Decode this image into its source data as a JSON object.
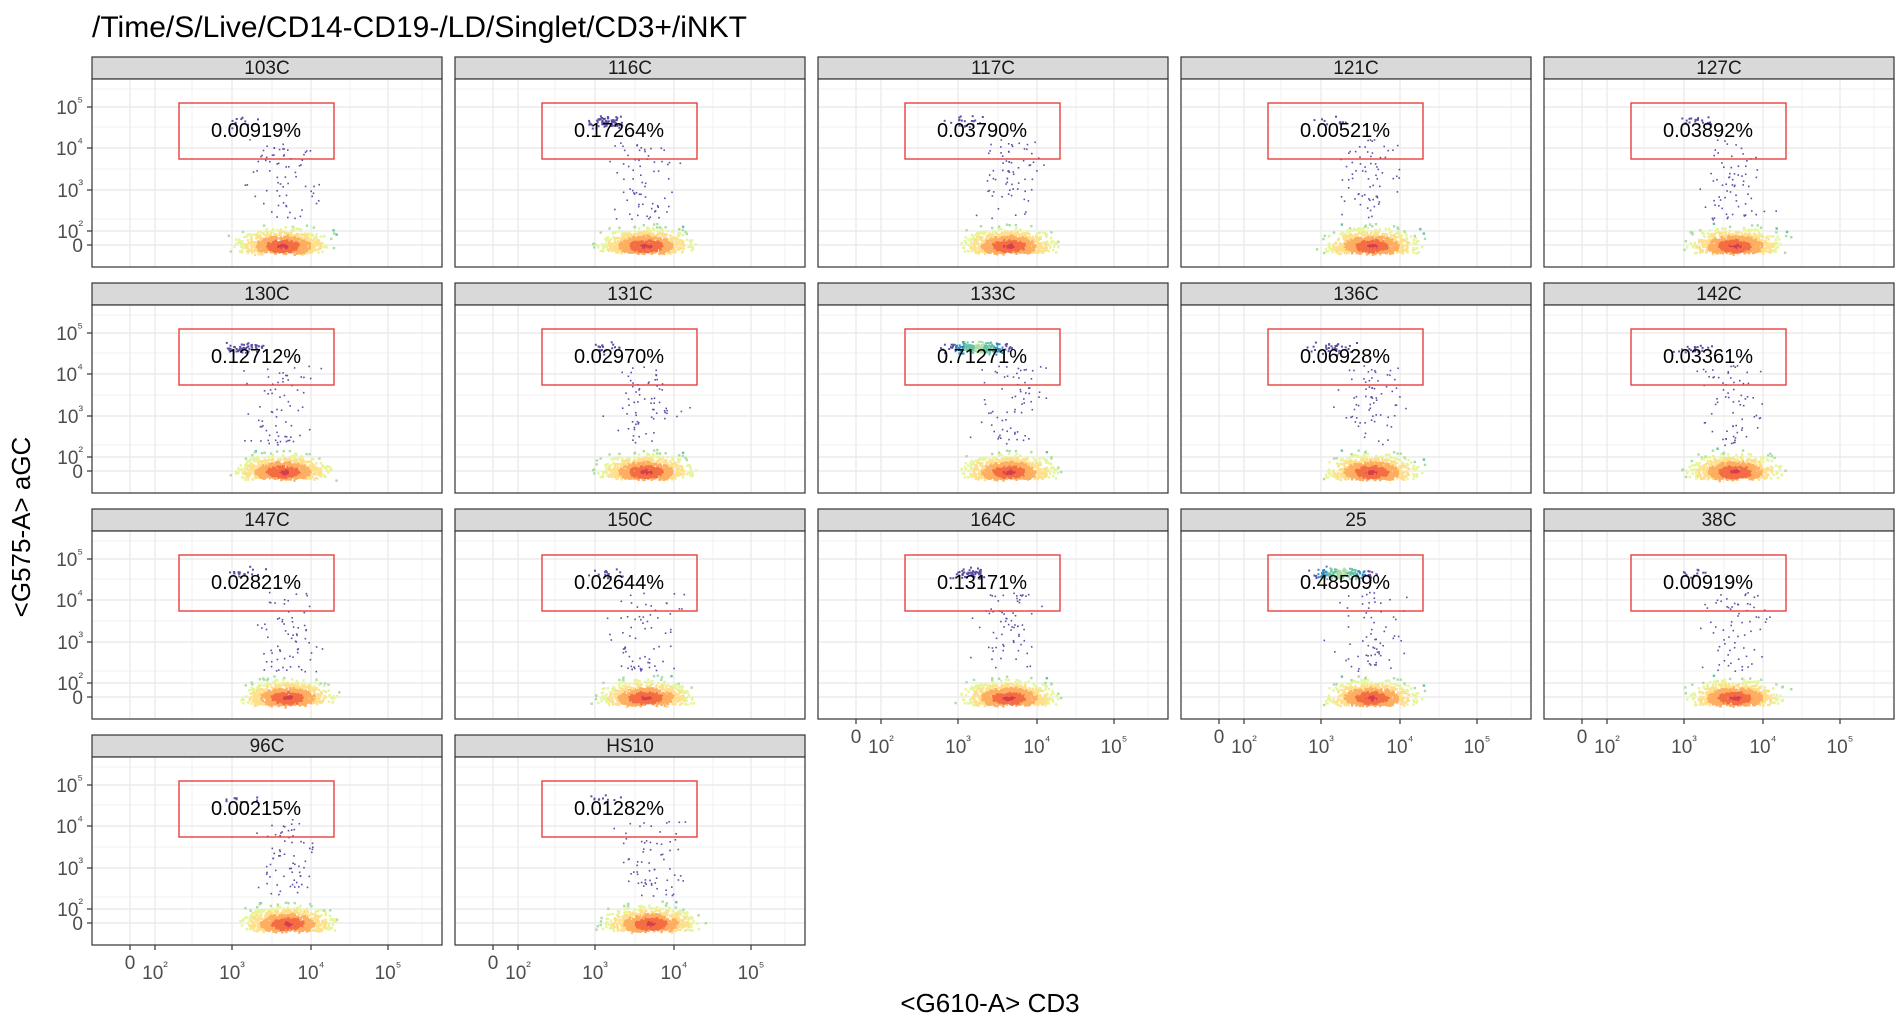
{
  "chart_data": {
    "type": "scatter",
    "title": "/Time/S/Live/CD14-CD19-/LD/Singlet/CD3+/iNKT",
    "xlabel": "<G610-A> CD3",
    "ylabel": "<G575-A> aGC",
    "x_ticks": [
      "0",
      "10²",
      "10³",
      "10⁴",
      "10⁵"
    ],
    "y_ticks": [
      "0",
      "10²",
      "10³",
      "10⁴",
      "10⁵"
    ],
    "grid": true,
    "gate_color": "#e8403c",
    "panels": [
      {
        "label": "103C",
        "value": "0.00919%"
      },
      {
        "label": "116C",
        "value": "0.17264%"
      },
      {
        "label": "117C",
        "value": "0.03790%"
      },
      {
        "label": "121C",
        "value": "0.00521%"
      },
      {
        "label": "127C",
        "value": "0.03892%"
      },
      {
        "label": "130C",
        "value": "0.12712%"
      },
      {
        "label": "131C",
        "value": "0.02970%"
      },
      {
        "label": "133C",
        "value": "0.71271%"
      },
      {
        "label": "136C",
        "value": "0.06928%"
      },
      {
        "label": "142C",
        "value": "0.03361%"
      },
      {
        "label": "147C",
        "value": "0.02821%"
      },
      {
        "label": "150C",
        "value": "0.02644%"
      },
      {
        "label": "164C",
        "value": "0.13171%"
      },
      {
        "label": "25",
        "value": "0.48509%"
      },
      {
        "label": "38C",
        "value": "0.00919%"
      },
      {
        "label": "96C",
        "value": "0.00215%"
      },
      {
        "label": "HS10",
        "value": "0.01282%"
      }
    ]
  }
}
